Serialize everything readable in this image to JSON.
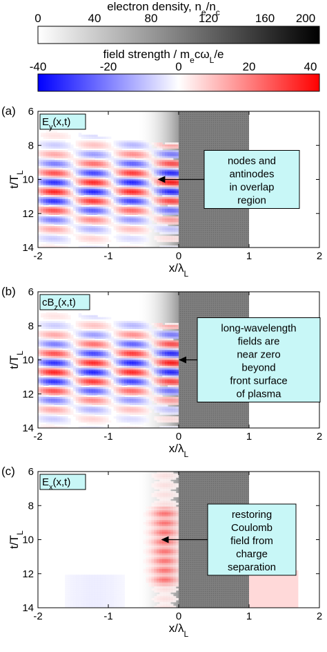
{
  "colorbars": [
    {
      "title": "electron density, n",
      "title_sub1": "e",
      "title_mid": "/n",
      "title_sub2": "c",
      "ticks": [
        "0",
        "40",
        "80",
        "120",
        "160",
        "200"
      ],
      "range": [
        0,
        200
      ],
      "colors": [
        "#ffffff",
        "#000000"
      ]
    },
    {
      "title": "field strength / m",
      "title_sub1": "e",
      "title_mid": "cω",
      "title_sub2": "L",
      "title_end": "/e",
      "ticks": [
        "-40",
        "-20",
        "0",
        "20",
        "40"
      ],
      "range": [
        -40,
        40
      ],
      "colors": [
        "#0000ff",
        "#ffffff",
        "#ff0000"
      ]
    }
  ],
  "axes": {
    "xlabel": "x/λ",
    "xlabel_sub": "L",
    "ylabel": "t/T",
    "ylabel_sub": "L",
    "xticks": [
      "-2",
      "-1",
      "0",
      "1",
      "2"
    ],
    "yticks": [
      "6",
      "8",
      "10",
      "12",
      "14"
    ],
    "xlim": [
      -2,
      2
    ],
    "ylim": [
      6,
      14
    ]
  },
  "chart_data": [
    {
      "type": "heatmap",
      "panel": "(a)",
      "field": "E",
      "field_sub": "y",
      "field_arg": "(x,t)",
      "annotation": [
        "nodes and",
        "antinodes",
        "in overlap",
        "region"
      ],
      "arrow_target": {
        "x": -0.3,
        "t": 10.0
      },
      "plasma_x": [
        0,
        1
      ],
      "density_ramp_x": [
        -0.6,
        0
      ],
      "pattern": "standing-wave",
      "amplitude": 35
    },
    {
      "type": "heatmap",
      "panel": "(b)",
      "field": "cB",
      "field_sub": "z",
      "field_arg": "(x,t)",
      "annotation": [
        "long-wavelength",
        "fields are",
        "near zero",
        "beyond",
        "front surface",
        "of plasma"
      ],
      "arrow_target": {
        "x": 0.0,
        "t": 10.0
      },
      "plasma_x": [
        0,
        1
      ],
      "density_ramp_x": [
        -0.6,
        0
      ],
      "pattern": "standing-wave",
      "amplitude": 35
    },
    {
      "type": "heatmap",
      "panel": "(c)",
      "field": "E",
      "field_sub": "x",
      "field_arg": "(x,t)",
      "annotation": [
        "restoring",
        "Coulomb",
        "field from",
        "charge",
        "separation"
      ],
      "arrow_target": {
        "x": -0.25,
        "t": 10.0
      },
      "plasma_x": [
        0,
        1
      ],
      "density_ramp_x": [
        -0.6,
        0
      ],
      "pattern": "surface-charge",
      "amplitude": 25
    }
  ]
}
